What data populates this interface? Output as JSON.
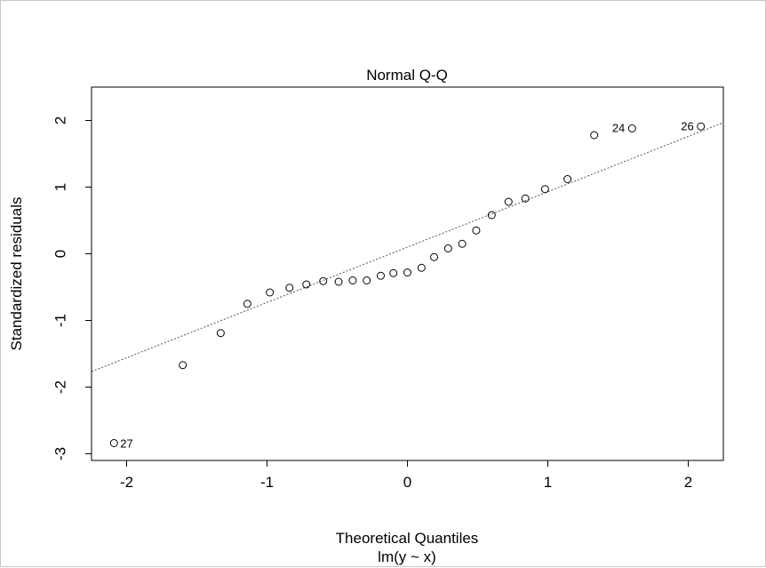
{
  "chart_data": {
    "type": "scatter",
    "title": "Normal Q-Q",
    "xlabel": "Theoretical Quantiles",
    "ylabel": "Standardized residuals",
    "subtitle": "lm(y ~ x)",
    "xlim": [
      -2.25,
      2.25
    ],
    "ylim": [
      -3.1,
      2.5
    ],
    "xticks": [
      -2,
      -1,
      0,
      1,
      2
    ],
    "xtick_labels": [
      "-2",
      "-1",
      "0",
      "1",
      "2"
    ],
    "yticks": [
      -3,
      -2,
      -1,
      0,
      1,
      2
    ],
    "ytick_labels": [
      "-3",
      "-2",
      "-1",
      "0",
      "1",
      "2"
    ],
    "grid": false,
    "reference_line": {
      "slope": 0.83,
      "intercept": 0.1,
      "style": "dotted"
    },
    "points": [
      {
        "x": -2.09,
        "y": -2.84,
        "label": "27"
      },
      {
        "x": -1.6,
        "y": -1.67
      },
      {
        "x": -1.33,
        "y": -1.19
      },
      {
        "x": -1.14,
        "y": -0.75
      },
      {
        "x": -0.98,
        "y": -0.58
      },
      {
        "x": -0.84,
        "y": -0.51
      },
      {
        "x": -0.72,
        "y": -0.46
      },
      {
        "x": -0.6,
        "y": -0.41
      },
      {
        "x": -0.49,
        "y": -0.42
      },
      {
        "x": -0.39,
        "y": -0.4
      },
      {
        "x": -0.29,
        "y": -0.4
      },
      {
        "x": -0.19,
        "y": -0.33
      },
      {
        "x": -0.1,
        "y": -0.29
      },
      {
        "x": 0.0,
        "y": -0.28
      },
      {
        "x": 0.1,
        "y": -0.21
      },
      {
        "x": 0.19,
        "y": -0.05
      },
      {
        "x": 0.29,
        "y": 0.08
      },
      {
        "x": 0.39,
        "y": 0.15
      },
      {
        "x": 0.49,
        "y": 0.35
      },
      {
        "x": 0.6,
        "y": 0.58
      },
      {
        "x": 0.72,
        "y": 0.78
      },
      {
        "x": 0.84,
        "y": 0.83
      },
      {
        "x": 0.98,
        "y": 0.97
      },
      {
        "x": 1.14,
        "y": 1.12
      },
      {
        "x": 1.33,
        "y": 1.78
      },
      {
        "x": 1.6,
        "y": 1.88,
        "label": "24"
      },
      {
        "x": 2.09,
        "y": 1.91,
        "label": "26"
      }
    ]
  }
}
